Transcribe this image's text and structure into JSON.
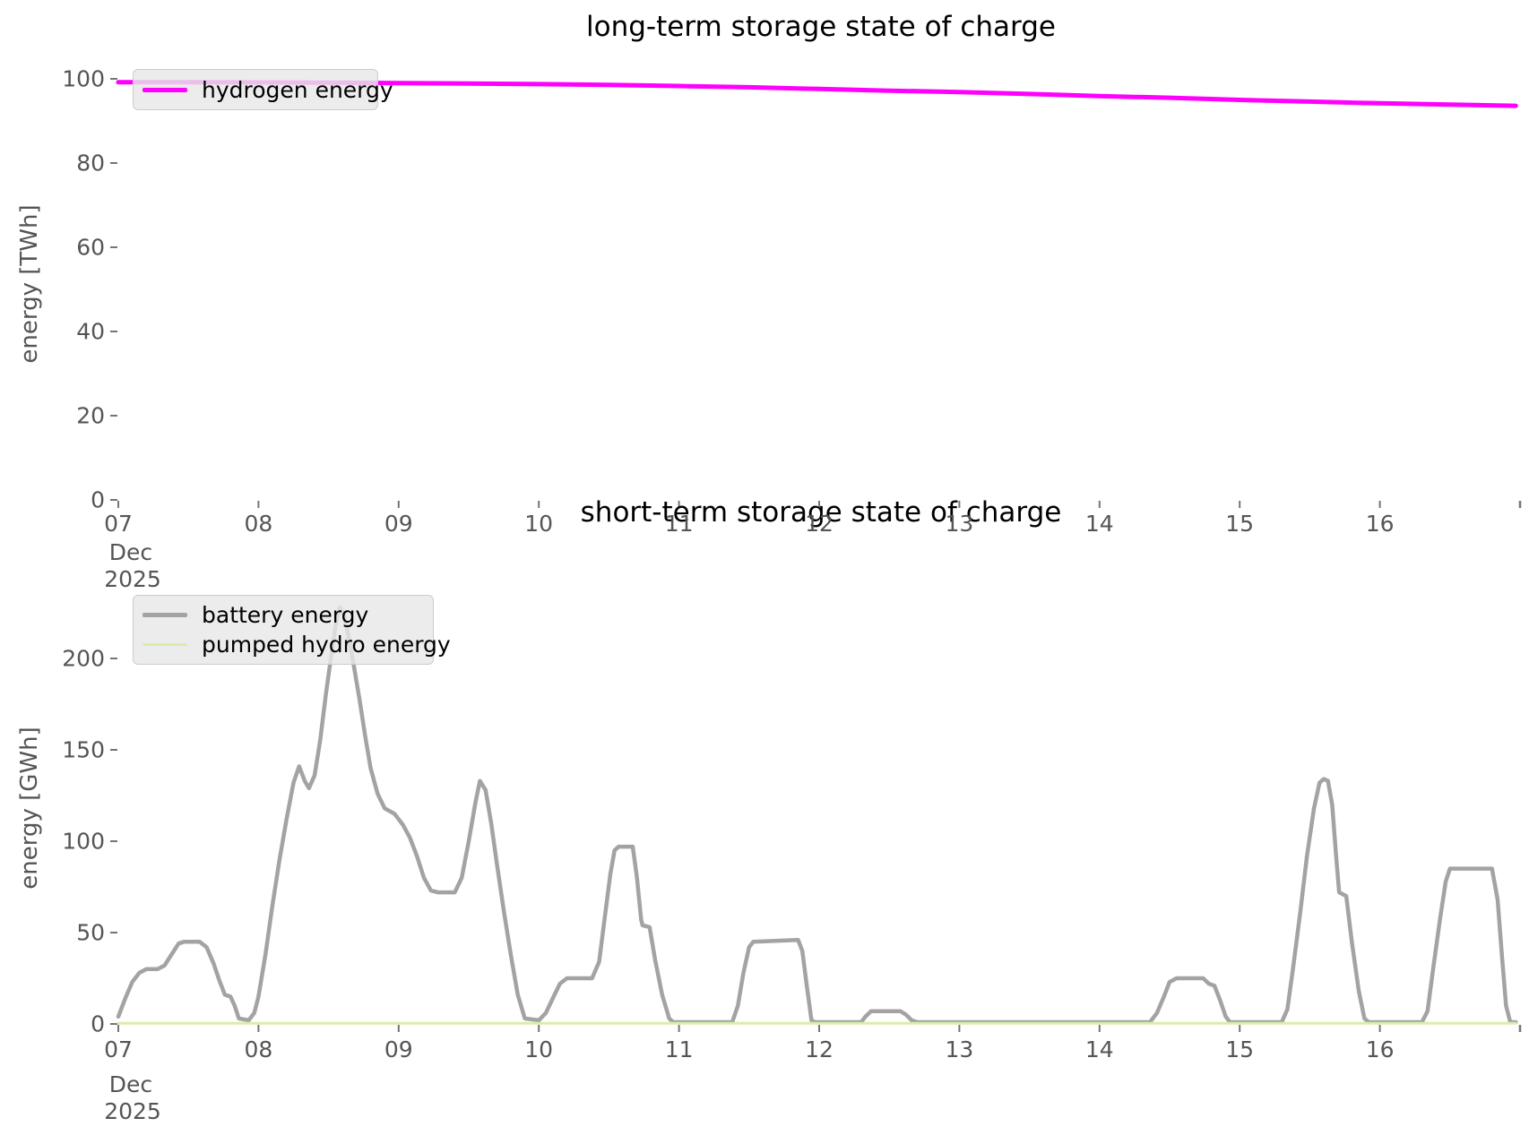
{
  "figure_background": "#ffffff",
  "text_color_ticks": "#555555",
  "text_color_titles": "#000000",
  "chart_data": [
    {
      "type": "line",
      "title": "long-term storage state of charge",
      "ylabel": "energy [TWh]",
      "ylim": [
        0,
        100
      ],
      "yticks": [
        0,
        20,
        40,
        60,
        80,
        100
      ],
      "xlim_days": [
        7,
        17
      ],
      "xtick_days": [
        7,
        8,
        9,
        10,
        11,
        12,
        13,
        14,
        15,
        16
      ],
      "xtick_labels": [
        "07",
        "08",
        "09",
        "10",
        "11",
        "12",
        "13",
        "14",
        "15",
        "16"
      ],
      "x_axis_month": "Dec",
      "x_axis_year": "2025",
      "grid": false,
      "legend_position": "upper left",
      "series": [
        {
          "name": "hydrogen energy",
          "color": "#ff00ff",
          "line_width": 5,
          "unit": "TWh",
          "points": [
            [
              7.0,
              99.2
            ],
            [
              7.5,
              99.2
            ],
            [
              8.0,
              99.15
            ],
            [
              8.5,
              99.1
            ],
            [
              9.0,
              99.0
            ],
            [
              9.5,
              98.9
            ],
            [
              10.0,
              98.75
            ],
            [
              10.5,
              98.55
            ],
            [
              11.0,
              98.3
            ],
            [
              11.5,
              98.0
            ],
            [
              12.0,
              97.6
            ],
            [
              12.5,
              97.2
            ],
            [
              13.0,
              96.85
            ],
            [
              13.5,
              96.4
            ],
            [
              14.0,
              95.9
            ],
            [
              14.5,
              95.5
            ],
            [
              15.0,
              95.0
            ],
            [
              15.5,
              94.6
            ],
            [
              16.0,
              94.2
            ],
            [
              16.5,
              93.9
            ],
            [
              16.97,
              93.6
            ]
          ]
        }
      ]
    },
    {
      "type": "line",
      "title": "short-term storage state of charge",
      "ylabel": "energy [GWh]",
      "ylim": [
        0,
        230
      ],
      "yticks": [
        0,
        50,
        100,
        150,
        200
      ],
      "xlim_days": [
        7,
        17
      ],
      "xtick_days": [
        7,
        8,
        9,
        10,
        11,
        12,
        13,
        14,
        15,
        16
      ],
      "xtick_labels": [
        "07",
        "08",
        "09",
        "10",
        "11",
        "12",
        "13",
        "14",
        "15",
        "16"
      ],
      "x_axis_month": "Dec",
      "x_axis_year": "2025",
      "grid": false,
      "legend_position": "upper left",
      "series": [
        {
          "name": "battery energy",
          "color": "#a3a3a3",
          "line_width": 4.5,
          "unit": "GWh",
          "points": [
            [
              7.0,
              4
            ],
            [
              7.05,
              14
            ],
            [
              7.1,
              23
            ],
            [
              7.15,
              28
            ],
            [
              7.2,
              30
            ],
            [
              7.28,
              30
            ],
            [
              7.33,
              32
            ],
            [
              7.38,
              38
            ],
            [
              7.43,
              44
            ],
            [
              7.47,
              45
            ],
            [
              7.58,
              45
            ],
            [
              7.63,
              42
            ],
            [
              7.68,
              33
            ],
            [
              7.72,
              24
            ],
            [
              7.76,
              16
            ],
            [
              7.8,
              15
            ],
            [
              7.83,
              10
            ],
            [
              7.86,
              3
            ],
            [
              7.93,
              2
            ],
            [
              7.97,
              6
            ],
            [
              8.0,
              15
            ],
            [
              8.05,
              38
            ],
            [
              8.1,
              65
            ],
            [
              8.15,
              90
            ],
            [
              8.2,
              112
            ],
            [
              8.25,
              132
            ],
            [
              8.29,
              141
            ],
            [
              8.33,
              133
            ],
            [
              8.36,
              129
            ],
            [
              8.4,
              136
            ],
            [
              8.44,
              155
            ],
            [
              8.48,
              180
            ],
            [
              8.52,
              202
            ],
            [
              8.55,
              218
            ],
            [
              8.58,
              228
            ],
            [
              8.61,
              224
            ],
            [
              8.64,
              213
            ],
            [
              8.68,
              196
            ],
            [
              8.72,
              178
            ],
            [
              8.76,
              158
            ],
            [
              8.8,
              140
            ],
            [
              8.85,
              126
            ],
            [
              8.9,
              118
            ],
            [
              8.97,
              115
            ],
            [
              9.03,
              109
            ],
            [
              9.08,
              102
            ],
            [
              9.13,
              92
            ],
            [
              9.18,
              80
            ],
            [
              9.23,
              73
            ],
            [
              9.28,
              72
            ],
            [
              9.4,
              72
            ],
            [
              9.45,
              80
            ],
            [
              9.5,
              100
            ],
            [
              9.55,
              122
            ],
            [
              9.58,
              133
            ],
            [
              9.62,
              128
            ],
            [
              9.66,
              110
            ],
            [
              9.7,
              88
            ],
            [
              9.75,
              62
            ],
            [
              9.8,
              38
            ],
            [
              9.85,
              16
            ],
            [
              9.9,
              3
            ],
            [
              10.0,
              2
            ],
            [
              10.05,
              6
            ],
            [
              10.1,
              14
            ],
            [
              10.15,
              22
            ],
            [
              10.2,
              25
            ],
            [
              10.38,
              25
            ],
            [
              10.43,
              34
            ],
            [
              10.47,
              58
            ],
            [
              10.51,
              82
            ],
            [
              10.54,
              95
            ],
            [
              10.57,
              97
            ],
            [
              10.67,
              97
            ],
            [
              10.7,
              80
            ],
            [
              10.73,
              57
            ],
            [
              10.74,
              54
            ],
            [
              10.79,
              53
            ],
            [
              10.83,
              35
            ],
            [
              10.88,
              16
            ],
            [
              10.93,
              3
            ],
            [
              10.96,
              1
            ],
            [
              11.38,
              1
            ],
            [
              11.42,
              10
            ],
            [
              11.46,
              28
            ],
            [
              11.5,
              42
            ],
            [
              11.53,
              45
            ],
            [
              11.85,
              46
            ],
            [
              11.88,
              40
            ],
            [
              11.91,
              22
            ],
            [
              11.945,
              2
            ],
            [
              11.97,
              1
            ],
            [
              12.3,
              1
            ],
            [
              12.33,
              4
            ],
            [
              12.37,
              7
            ],
            [
              12.58,
              7
            ],
            [
              12.62,
              5
            ],
            [
              12.66,
              2
            ],
            [
              12.7,
              1
            ],
            [
              14.36,
              1
            ],
            [
              14.41,
              6
            ],
            [
              14.46,
              15
            ],
            [
              14.5,
              23
            ],
            [
              14.55,
              25
            ],
            [
              14.74,
              25
            ],
            [
              14.78,
              22
            ],
            [
              14.82,
              21
            ],
            [
              14.86,
              13
            ],
            [
              14.9,
              4
            ],
            [
              14.93,
              1
            ],
            [
              15.3,
              1
            ],
            [
              15.34,
              8
            ],
            [
              15.38,
              30
            ],
            [
              15.43,
              60
            ],
            [
              15.48,
              92
            ],
            [
              15.53,
              118
            ],
            [
              15.57,
              132
            ],
            [
              15.6,
              134
            ],
            [
              15.63,
              133
            ],
            [
              15.66,
              120
            ],
            [
              15.69,
              90
            ],
            [
              15.71,
              72
            ],
            [
              15.76,
              70
            ],
            [
              15.8,
              45
            ],
            [
              15.85,
              18
            ],
            [
              15.89,
              3
            ],
            [
              15.92,
              1
            ],
            [
              16.3,
              1
            ],
            [
              16.34,
              7
            ],
            [
              16.38,
              30
            ],
            [
              16.43,
              58
            ],
            [
              16.47,
              78
            ],
            [
              16.5,
              85
            ],
            [
              16.8,
              85
            ],
            [
              16.84,
              68
            ],
            [
              16.87,
              38
            ],
            [
              16.9,
              10
            ],
            [
              16.93,
              1
            ],
            [
              16.97,
              1
            ]
          ]
        },
        {
          "name": "pumped hydro energy",
          "color": "#d8eeaa",
          "line_width": 3,
          "unit": "GWh",
          "points": [
            [
              7.0,
              0.4
            ],
            [
              16.97,
              0.4
            ]
          ]
        }
      ]
    }
  ]
}
